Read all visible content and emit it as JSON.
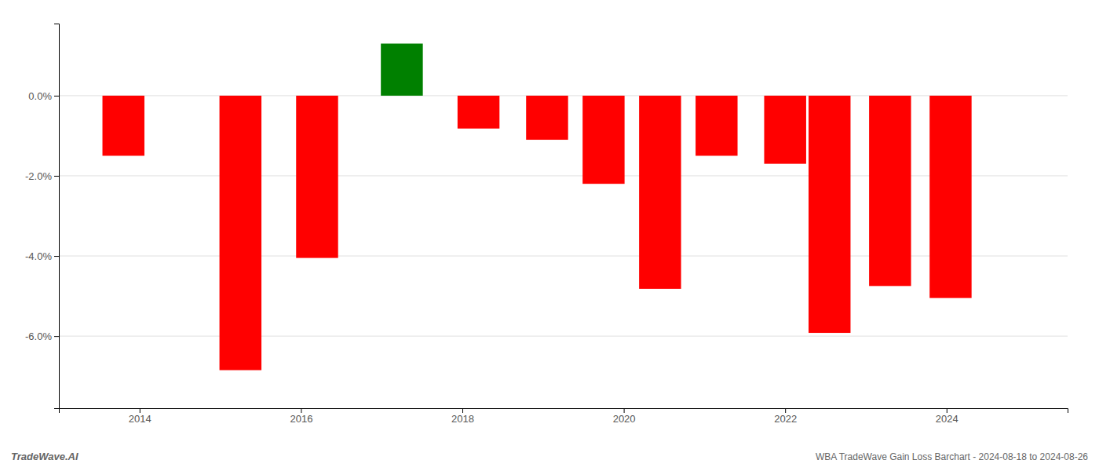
{
  "chart_data": {
    "type": "bar",
    "x": [
      2013.3,
      2014.75,
      2015.7,
      2016.75,
      2017.7,
      2018.55,
      2019.25,
      2019.95,
      2020.65,
      2021.5,
      2022.05,
      2022.8,
      2023.55
    ],
    "values": [
      -1.5,
      -6.85,
      -4.05,
      1.3,
      -0.82,
      -1.1,
      -2.2,
      -4.82,
      -1.5,
      -1.7,
      -5.92,
      -4.75,
      -5.05
    ],
    "colors": [
      "#ff0000",
      "#ff0000",
      "#ff0000",
      "#008000",
      "#ff0000",
      "#ff0000",
      "#ff0000",
      "#ff0000",
      "#ff0000",
      "#ff0000",
      "#ff0000",
      "#ff0000",
      "#ff0000"
    ],
    "xlim": [
      2012.5,
      2025.0
    ],
    "xticks": [
      {
        "value": 2013.5,
        "label": "2014"
      },
      {
        "value": 2015.5,
        "label": "2016"
      },
      {
        "value": 2017.5,
        "label": "2018"
      },
      {
        "value": 2019.5,
        "label": "2020"
      },
      {
        "value": 2021.5,
        "label": "2022"
      },
      {
        "value": 2023.5,
        "label": "2024"
      }
    ],
    "ylim": [
      -7.8,
      1.8
    ],
    "yticks": [
      {
        "value": 0.0,
        "label": "0.0%"
      },
      {
        "value": -2.0,
        "label": "-2.0%"
      },
      {
        "value": -4.0,
        "label": "-4.0%"
      },
      {
        "value": -6.0,
        "label": "-6.0%"
      }
    ],
    "grid": true,
    "annotations": [
      "TradeWave.AI",
      "WBA TradeWave Gain Loss Barchart - 2024-08-18 to 2024-08-26"
    ]
  }
}
